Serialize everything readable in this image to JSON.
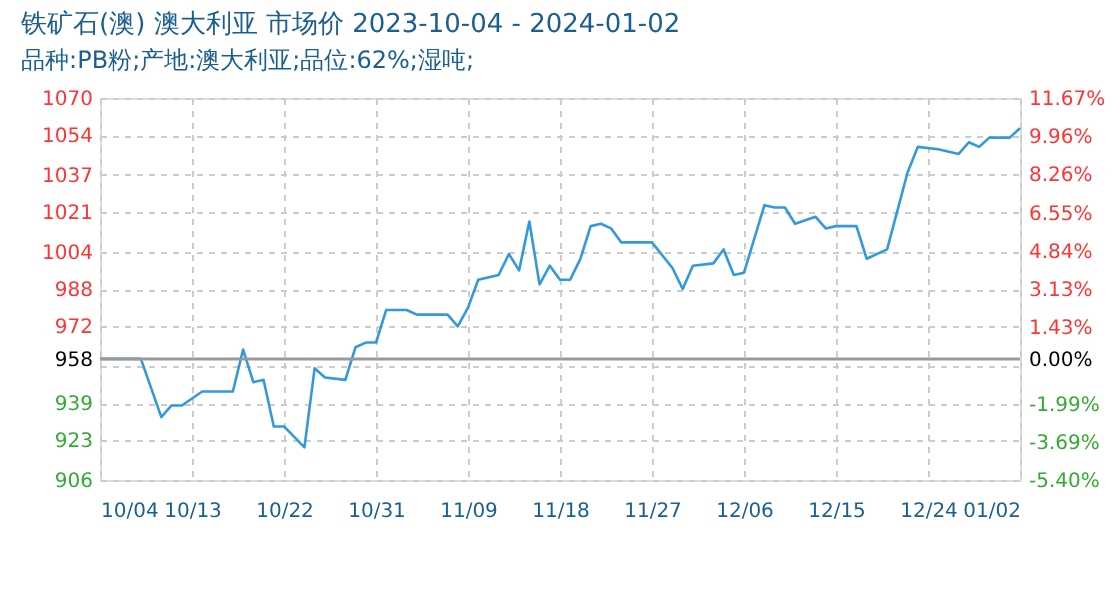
{
  "chart_data": {
    "type": "line",
    "title": "铁矿石(澳) 澳大利亚 市场价 2023-10-04 - 2024-01-02",
    "subtitle": "品种:PB粉;产地:澳大利亚;品位:62%;湿吨;",
    "x": [
      "2023-10-04",
      "2023-10-08",
      "2023-10-10",
      "2023-10-11",
      "2023-10-12",
      "2023-10-14",
      "2023-10-17",
      "2023-10-18",
      "2023-10-19",
      "2023-10-20",
      "2023-10-21",
      "2023-10-22",
      "2023-10-24",
      "2023-10-25",
      "2023-10-26",
      "2023-10-28",
      "2023-10-29",
      "2023-10-30",
      "2023-10-31",
      "2023-11-01",
      "2023-11-03",
      "2023-11-04",
      "2023-11-07",
      "2023-11-08",
      "2023-11-09",
      "2023-11-10",
      "2023-11-12",
      "2023-11-13",
      "2023-11-14",
      "2023-11-15",
      "2023-11-16",
      "2023-11-17",
      "2023-11-18",
      "2023-11-19",
      "2023-11-20",
      "2023-11-21",
      "2023-11-22",
      "2023-11-23",
      "2023-11-24",
      "2023-11-27",
      "2023-11-29",
      "2023-11-30",
      "2023-12-01",
      "2023-12-03",
      "2023-12-04",
      "2023-12-05",
      "2023-12-06",
      "2023-12-08",
      "2023-12-09",
      "2023-12-10",
      "2023-12-11",
      "2023-12-13",
      "2023-12-14",
      "2023-12-15",
      "2023-12-17",
      "2023-12-18",
      "2023-12-20",
      "2023-12-22",
      "2023-12-23",
      "2023-12-25",
      "2023-12-27",
      "2023-12-28",
      "2023-12-29",
      "2023-12-30",
      "2024-01-01",
      "2024-01-02"
    ],
    "series": [
      {
        "color": "#3399dd",
        "values": [
          958,
          958,
          933,
          938,
          938,
          944,
          944,
          962,
          948,
          949,
          929,
          929,
          920,
          954,
          950,
          949,
          963,
          965,
          965,
          979,
          979,
          977,
          977,
          972,
          980,
          992,
          994,
          1003,
          996,
          1017,
          990,
          998,
          992,
          992,
          1001,
          1015,
          1016,
          1014,
          1008,
          1008,
          997,
          988,
          998,
          999,
          1005,
          994,
          995,
          1024,
          1023,
          1023,
          1016,
          1019,
          1014,
          1015,
          1015,
          1001,
          1005,
          1038,
          1049,
          1048,
          1046,
          1051,
          1049,
          1053,
          1053,
          1057
        ]
      }
    ],
    "xlim": [
      "2023-10-04",
      "2024-01-02"
    ],
    "xticks": [
      {
        "value": "2023-10-04",
        "label": "10/04"
      },
      {
        "value": "2023-10-13",
        "label": "10/13"
      },
      {
        "value": "2023-10-22",
        "label": "10/22"
      },
      {
        "value": "2023-10-31",
        "label": "10/31"
      },
      {
        "value": "2023-11-09",
        "label": "11/09"
      },
      {
        "value": "2023-11-18",
        "label": "11/18"
      },
      {
        "value": "2023-11-27",
        "label": "11/27"
      },
      {
        "value": "2023-12-06",
        "label": "12/06"
      },
      {
        "value": "2023-12-15",
        "label": "12/15"
      },
      {
        "value": "2023-12-24",
        "label": "12/24"
      },
      {
        "value": "2024-01-02",
        "label": "01/02"
      }
    ],
    "ylim": [
      906,
      1070
    ],
    "yticks": [
      906,
      923,
      939,
      {
        "value": 955,
        "label": null
      },
      958,
      972,
      988,
      1004,
      1021,
      1037,
      1054,
      1070
    ],
    "y2lim": [
      -5.4,
      11.67
    ],
    "y2ticks": [
      {
        "value": -5.4,
        "label": "-5.40%"
      },
      {
        "value": -3.69,
        "label": "-3.69%"
      },
      {
        "value": -1.99,
        "label": "-1.99%"
      },
      {
        "value": 0,
        "label": "0.00%"
      },
      {
        "value": 1.43,
        "label": "1.43%"
      },
      {
        "value": 3.13,
        "label": "3.13%"
      },
      {
        "value": 4.84,
        "label": "4.84%"
      },
      {
        "value": 6.55,
        "label": "6.55%"
      },
      {
        "value": 8.26,
        "label": "8.26%"
      },
      {
        "value": 9.96,
        "label": "9.96%"
      },
      {
        "value": 11.67,
        "label": "11.67%"
      }
    ],
    "ref_lines": [
      {
        "axis": "y",
        "value": 958,
        "color": "#999999"
      }
    ],
    "grid": true
  }
}
